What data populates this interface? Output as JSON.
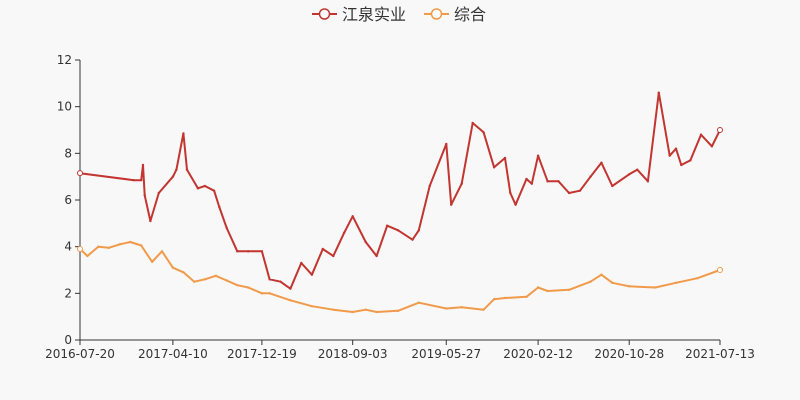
{
  "chart_data": {
    "type": "line",
    "x_ticks": [
      "2016-07-20",
      "2017-04-10",
      "2017-12-19",
      "2018-09-03",
      "2019-05-27",
      "2020-02-12",
      "2020-10-28",
      "2021-07-13"
    ],
    "y_ticks": [
      0,
      2,
      4,
      6,
      8,
      10,
      12
    ],
    "ylim": [
      0,
      12
    ],
    "grid": false,
    "legend_position": "top-center",
    "series": [
      {
        "name": "江泉实业",
        "color": "#c23531",
        "x": [
          "2016-07-20",
          "2016-12-20",
          "2017-01-10",
          "2017-01-15",
          "2017-01-20",
          "2017-02-05",
          "2017-03-01",
          "2017-04-10",
          "2017-04-20",
          "2017-05-10",
          "2017-05-20",
          "2017-06-20",
          "2017-07-10",
          "2017-08-05",
          "2017-08-20",
          "2017-09-10",
          "2017-10-10",
          "2017-11-10",
          "2017-12-19",
          "2018-01-10",
          "2018-02-10",
          "2018-03-10",
          "2018-04-10",
          "2018-05-10",
          "2018-06-10",
          "2018-07-10",
          "2018-08-10",
          "2018-09-03",
          "2018-10-10",
          "2018-11-10",
          "2018-12-10",
          "2019-01-10",
          "2019-02-20",
          "2019-03-10",
          "2019-04-10",
          "2019-05-27",
          "2019-06-10",
          "2019-07-10",
          "2019-08-10",
          "2019-09-10",
          "2019-10-10",
          "2019-11-10",
          "2019-11-25",
          "2019-12-10",
          "2020-01-10",
          "2020-01-25",
          "2020-02-12",
          "2020-03-10",
          "2020-04-10",
          "2020-05-10",
          "2020-06-10",
          "2020-07-10",
          "2020-08-10",
          "2020-09-10",
          "2020-10-28",
          "2020-11-20",
          "2020-12-20",
          "2021-01-20",
          "2021-02-20",
          "2021-03-10",
          "2021-03-25",
          "2021-04-20",
          "2021-05-20",
          "2021-06-20",
          "2021-07-13"
        ],
        "values": [
          7.15,
          6.85,
          6.85,
          7.5,
          6.2,
          5.1,
          6.3,
          7.0,
          7.3,
          8.85,
          7.3,
          6.5,
          6.6,
          6.4,
          5.7,
          4.8,
          3.8,
          3.8,
          3.8,
          2.6,
          2.5,
          2.2,
          3.3,
          2.8,
          3.9,
          3.6,
          4.6,
          5.3,
          4.2,
          3.6,
          4.9,
          4.7,
          4.3,
          4.7,
          6.6,
          8.4,
          5.8,
          6.7,
          9.3,
          8.9,
          7.4,
          7.8,
          6.3,
          5.8,
          6.9,
          6.7,
          7.9,
          6.8,
          6.8,
          6.3,
          6.4,
          7.0,
          7.6,
          6.6,
          7.1,
          7.3,
          6.8,
          10.6,
          7.9,
          8.2,
          7.5,
          7.7,
          8.8,
          8.3,
          9.0
        ]
      },
      {
        "name": "综合",
        "color": "#f19a4a",
        "x": [
          "2016-07-20",
          "2016-08-10",
          "2016-09-10",
          "2016-10-10",
          "2016-11-10",
          "2016-12-10",
          "2017-01-10",
          "2017-02-10",
          "2017-03-10",
          "2017-04-10",
          "2017-05-10",
          "2017-06-10",
          "2017-07-10",
          "2017-08-10",
          "2017-09-10",
          "2017-10-10",
          "2017-11-10",
          "2017-12-19",
          "2018-01-10",
          "2018-03-10",
          "2018-05-10",
          "2018-07-10",
          "2018-09-03",
          "2018-10-10",
          "2018-11-10",
          "2019-01-10",
          "2019-03-10",
          "2019-05-27",
          "2019-07-10",
          "2019-09-10",
          "2019-10-10",
          "2019-11-10",
          "2020-01-10",
          "2020-02-12",
          "2020-03-10",
          "2020-05-10",
          "2020-07-10",
          "2020-08-10",
          "2020-09-10",
          "2020-10-28",
          "2021-01-10",
          "2021-03-10",
          "2021-05-10",
          "2021-07-13"
        ],
        "values": [
          3.9,
          3.6,
          4.0,
          3.95,
          4.1,
          4.2,
          4.05,
          3.35,
          3.8,
          3.1,
          2.9,
          2.5,
          2.6,
          2.75,
          2.55,
          2.35,
          2.25,
          2.0,
          2.0,
          1.7,
          1.45,
          1.3,
          1.2,
          1.3,
          1.2,
          1.25,
          1.6,
          1.35,
          1.4,
          1.3,
          1.75,
          1.8,
          1.85,
          2.25,
          2.1,
          2.15,
          2.5,
          2.8,
          2.45,
          2.3,
          2.25,
          2.45,
          2.65,
          3.0
        ]
      }
    ]
  }
}
